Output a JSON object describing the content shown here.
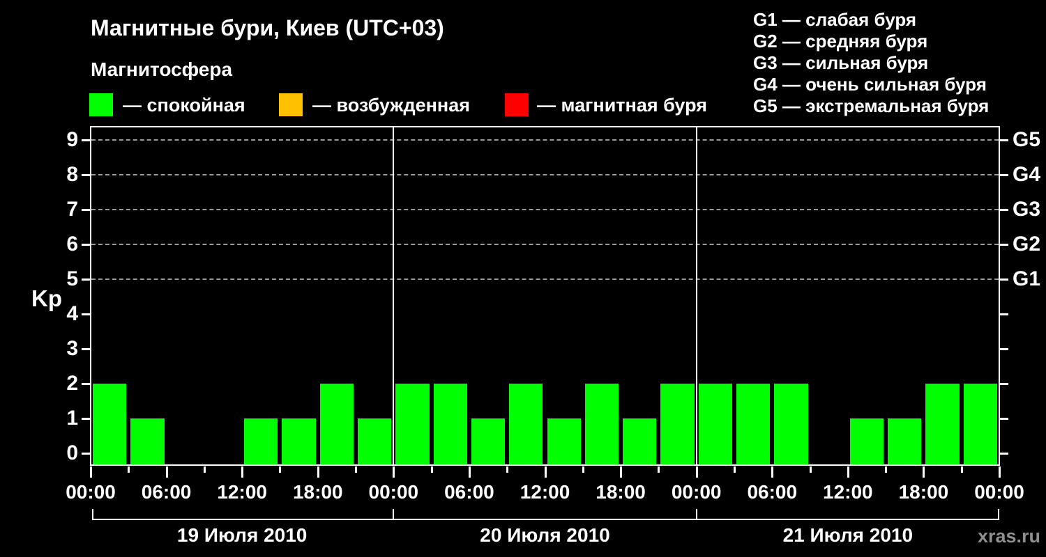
{
  "title": "Магнитные бури, Киев (UTC+03)",
  "subtitle": "Магнитосфера",
  "magnetosphere_legend": [
    {
      "name": "quiet",
      "label": "— спокойная",
      "color": "#00FF00"
    },
    {
      "name": "disturbed",
      "label": "— возбужденная",
      "color": "#FFC000"
    },
    {
      "name": "storm",
      "label": "— магнитная буря",
      "color": "#FF0000"
    }
  ],
  "storm_scale_legend": [
    {
      "label": "G1 — слабая буря"
    },
    {
      "label": "G2 — средняя буря"
    },
    {
      "label": "G3 — сильная буря"
    },
    {
      "label": "G4 — очень сильная буря"
    },
    {
      "label": "G5 — экстремальная буря"
    }
  ],
  "watermark": "xras.ru",
  "chart_data": {
    "type": "bar",
    "title": "Магнитные бури, Киев (UTC+03)",
    "ylabel": "Kp",
    "ylim": [
      0,
      9
    ],
    "y_ticks": [
      "0",
      "1",
      "2",
      "3",
      "4",
      "5",
      "6",
      "7",
      "8",
      "9"
    ],
    "gridlines_at_kp": [
      5,
      6,
      7,
      8,
      9
    ],
    "grid": "dashed horizontal at Kp 5-9 only",
    "right_axis": [
      {
        "label": "G5",
        "kp": 9
      },
      {
        "label": "G4",
        "kp": 8
      },
      {
        "label": "G3",
        "kp": 7
      },
      {
        "label": "G2",
        "kp": 6
      },
      {
        "label": "G1",
        "kp": 5
      }
    ],
    "bar_color": "#00FF00",
    "interval_hours": 3,
    "time_tick_labels": [
      "00:00",
      "06:00",
      "12:00",
      "18:00"
    ],
    "final_time_tick_label": "00:00",
    "days": [
      {
        "date": "19 Июля 2010",
        "kp": [
          2,
          1,
          0,
          0,
          1,
          1,
          2,
          1
        ]
      },
      {
        "date": "20 Июля 2010",
        "kp": [
          2,
          2,
          1,
          2,
          1,
          2,
          1,
          2
        ]
      },
      {
        "date": "21 Июля 2010",
        "kp": [
          2,
          2,
          2,
          0,
          1,
          1,
          2,
          2
        ]
      }
    ]
  }
}
